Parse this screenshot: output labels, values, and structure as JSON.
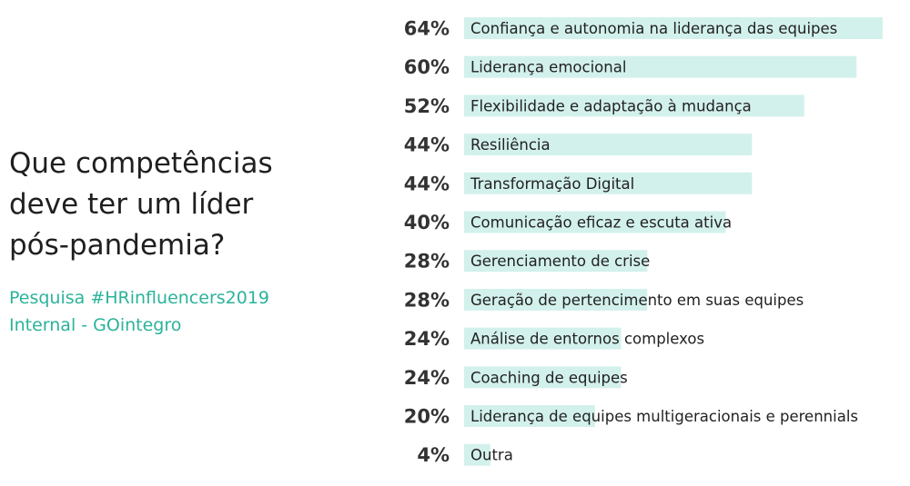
{
  "title": "Que competências\ndeve ter um líder\npós-pandemia?",
  "subtitle": "Pesquisa #HRinfluencers2019\nInternal - GOintegro",
  "colors": {
    "bar": "#d3f1ec",
    "accent": "#2bb39a",
    "title": "#1f1f1f"
  },
  "chart_data": {
    "type": "bar",
    "orientation": "horizontal",
    "title": "Que competências deve ter um líder pós-pandemia?",
    "subtitle": "Pesquisa #HRinfluencers2019 Internal - GOintegro",
    "categories": [
      "Confiança e autonomia na liderança das equipes",
      "Liderança emocional",
      "Flexibilidade e adaptação à mudança",
      "Resiliência",
      "Transformação Digital",
      "Comunicação eficaz e escuta ativa",
      "Gerenciamento de crise",
      "Geração de pertencimento em suas equipes",
      "Análise de entornos complexos",
      "Coaching de equipes",
      "Liderança de equipes multigeracionais e perennials",
      "Outra"
    ],
    "values": [
      64,
      60,
      52,
      44,
      44,
      40,
      28,
      28,
      24,
      24,
      20,
      4
    ],
    "value_labels": [
      "64%",
      "60%",
      "52%",
      "44%",
      "44%",
      "40%",
      "28%",
      "28%",
      "24%",
      "24%",
      "20%",
      "4%"
    ],
    "unit": "%",
    "xlim": [
      0,
      64
    ],
    "grid": false,
    "legend": "none"
  }
}
